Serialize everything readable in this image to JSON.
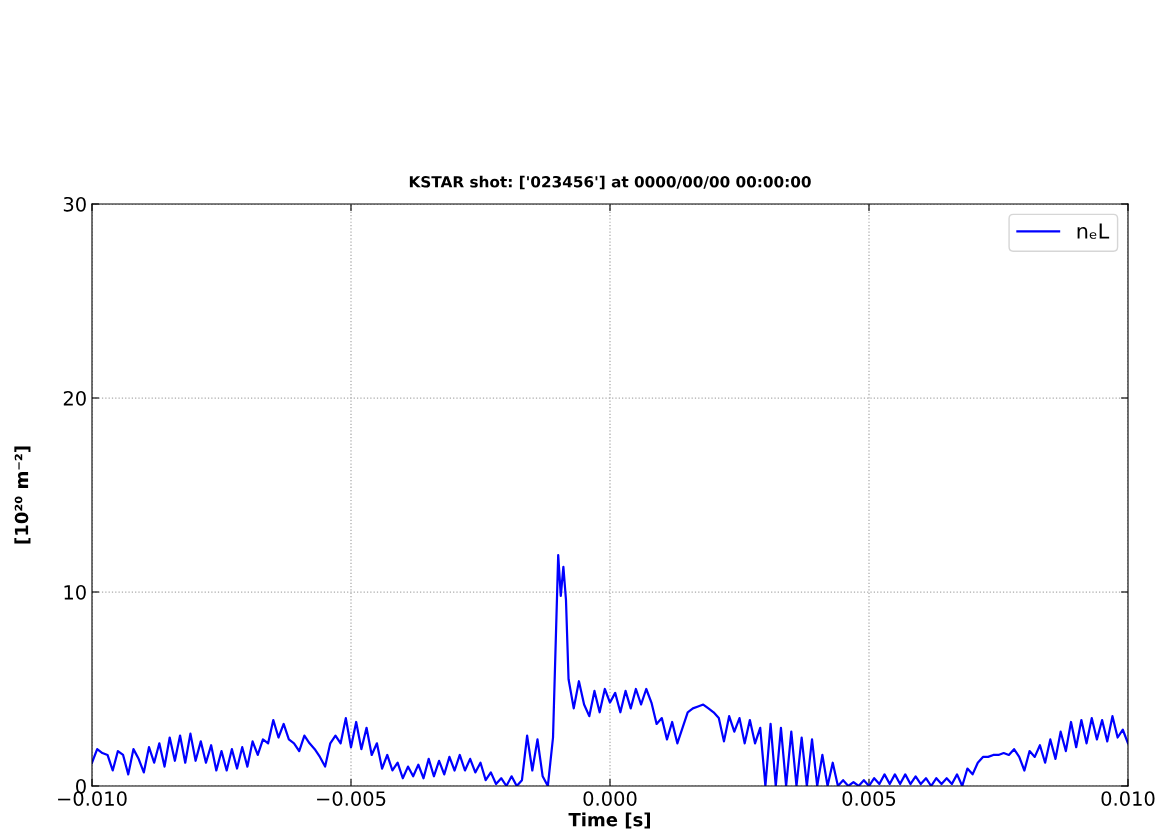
{
  "chart_data": {
    "type": "line",
    "title": "KSTAR shot: ['023456'] at 0000/00/00 00:00:00",
    "xlabel": "Time [s]",
    "ylabel": "[10²⁰ m⁻²]",
    "x": [
      -0.01,
      -0.0099,
      -0.0098,
      -0.0097,
      -0.0096,
      -0.0095,
      -0.0094,
      -0.0093,
      -0.0092,
      -0.0091,
      -0.009,
      -0.0089,
      -0.0088,
      -0.0087,
      -0.0086,
      -0.0085,
      -0.0084,
      -0.0083,
      -0.0082,
      -0.0081,
      -0.008,
      -0.0079,
      -0.0078,
      -0.0077,
      -0.0076,
      -0.0075,
      -0.0074,
      -0.0073,
      -0.0072,
      -0.0071,
      -0.007,
      -0.0069,
      -0.0068,
      -0.0067,
      -0.0066,
      -0.0065,
      -0.0064,
      -0.0063,
      -0.0062,
      -0.0061,
      -0.006,
      -0.0059,
      -0.0058,
      -0.0057,
      -0.0056,
      -0.0055,
      -0.0054,
      -0.0053,
      -0.0052,
      -0.0051,
      -0.005,
      -0.0049,
      -0.0048,
      -0.0047,
      -0.0046,
      -0.0045,
      -0.0044,
      -0.0043,
      -0.0042,
      -0.0041,
      -0.004,
      -0.0039,
      -0.0038,
      -0.0037,
      -0.0036,
      -0.0035,
      -0.0034,
      -0.0033,
      -0.0032,
      -0.0031,
      -0.003,
      -0.0029,
      -0.0028,
      -0.0027,
      -0.0026,
      -0.0025,
      -0.0024,
      -0.0023,
      -0.0022,
      -0.0021,
      -0.002,
      -0.0019,
      -0.0018,
      -0.0017,
      -0.0016,
      -0.0015,
      -0.0014,
      -0.0013,
      -0.0012,
      -0.0011,
      -0.001,
      -0.00095,
      -0.0009,
      -0.00085,
      -0.0008,
      -0.0007,
      -0.0006,
      -0.0005,
      -0.0004,
      -0.0003,
      -0.0002,
      -0.0001,
      0.0,
      0.0001,
      0.0002,
      0.0003,
      0.0004,
      0.0005,
      0.0006,
      0.0007,
      0.0008,
      0.0009,
      0.001,
      0.0011,
      0.0012,
      0.0013,
      0.0014,
      0.0015,
      0.0016,
      0.0017,
      0.0018,
      0.0019,
      0.002,
      0.0021,
      0.0022,
      0.0023,
      0.0024,
      0.0025,
      0.0026,
      0.0027,
      0.0028,
      0.0029,
      0.003,
      0.0031,
      0.0032,
      0.0033,
      0.0034,
      0.0035,
      0.0036,
      0.0037,
      0.0038,
      0.0039,
      0.004,
      0.0041,
      0.0042,
      0.0043,
      0.0044,
      0.0045,
      0.0046,
      0.0047,
      0.0048,
      0.0049,
      0.005,
      0.0051,
      0.0052,
      0.0053,
      0.0054,
      0.0055,
      0.0056,
      0.0057,
      0.0058,
      0.0059,
      0.006,
      0.0061,
      0.0062,
      0.0063,
      0.0064,
      0.0065,
      0.0066,
      0.0067,
      0.0068,
      0.0069,
      0.007,
      0.0071,
      0.0072,
      0.0073,
      0.0074,
      0.0075,
      0.0076,
      0.0077,
      0.0078,
      0.0079,
      0.008,
      0.0081,
      0.0082,
      0.0083,
      0.0084,
      0.0085,
      0.0086,
      0.0087,
      0.0088,
      0.0089,
      0.009,
      0.0091,
      0.0092,
      0.0093,
      0.0094,
      0.0095,
      0.0096,
      0.0097,
      0.0098,
      0.0099,
      0.01
    ],
    "series": [
      {
        "name": "nₑL",
        "color": "#0000ff",
        "values": [
          1.2,
          1.9,
          1.7,
          1.6,
          0.8,
          1.8,
          1.6,
          0.6,
          1.9,
          1.4,
          0.7,
          2.0,
          1.2,
          2.2,
          1.0,
          2.5,
          1.3,
          2.6,
          1.2,
          2.7,
          1.3,
          2.3,
          1.2,
          2.1,
          0.8,
          1.8,
          0.8,
          1.9,
          0.9,
          2.0,
          1.0,
          2.3,
          1.6,
          2.4,
          2.2,
          3.4,
          2.5,
          3.2,
          2.4,
          2.2,
          1.8,
          2.6,
          2.2,
          1.9,
          1.5,
          1.0,
          2.2,
          2.6,
          2.2,
          3.5,
          2.0,
          3.3,
          1.9,
          3.0,
          1.6,
          2.2,
          0.9,
          1.6,
          0.8,
          1.2,
          0.4,
          1.0,
          0.5,
          1.1,
          0.4,
          1.4,
          0.5,
          1.3,
          0.6,
          1.5,
          0.8,
          1.6,
          0.8,
          1.4,
          0.7,
          1.2,
          0.3,
          0.7,
          0.1,
          0.4,
          0.0,
          0.5,
          0.0,
          0.3,
          2.6,
          0.8,
          2.4,
          0.5,
          0.0,
          2.5,
          11.9,
          9.8,
          11.3,
          9.6,
          5.5,
          4.0,
          5.4,
          4.2,
          3.6,
          4.9,
          3.8,
          5.0,
          4.3,
          4.8,
          3.8,
          4.9,
          4.0,
          5.0,
          4.2,
          5.0,
          4.3,
          3.2,
          3.5,
          2.4,
          3.3,
          2.2,
          3.0,
          3.8,
          4.0,
          4.1,
          4.2,
          4.0,
          3.8,
          3.5,
          2.3,
          3.6,
          2.8,
          3.5,
          2.2,
          3.4,
          2.2,
          3.0,
          0.0,
          3.2,
          0.0,
          3.0,
          0.0,
          2.8,
          0.0,
          2.5,
          0.0,
          2.4,
          0.0,
          1.6,
          0.0,
          1.2,
          0.0,
          0.3,
          0.0,
          0.2,
          0.0,
          0.3,
          0.0,
          0.4,
          0.1,
          0.6,
          0.1,
          0.6,
          0.1,
          0.6,
          0.1,
          0.5,
          0.1,
          0.4,
          0.0,
          0.4,
          0.1,
          0.4,
          0.1,
          0.6,
          0.0,
          0.9,
          0.6,
          1.2,
          1.5,
          1.5,
          1.6,
          1.6,
          1.7,
          1.6,
          1.9,
          1.5,
          0.8,
          1.8,
          1.5,
          2.1,
          1.2,
          2.4,
          1.4,
          2.8,
          1.8,
          3.3,
          2.0,
          3.4,
          2.2,
          3.5,
          2.4,
          3.4,
          2.3,
          3.6,
          2.5,
          2.9,
          2.2
        ]
      }
    ],
    "xlim": [
      -0.01,
      0.01
    ],
    "xticks": [
      {
        "value": -0.01,
        "label": "−0.010"
      },
      {
        "value": -0.005,
        "label": "−0.005"
      },
      {
        "value": 0.0,
        "label": "0.000"
      },
      {
        "value": 0.005,
        "label": "0.005"
      },
      {
        "value": 0.01,
        "label": "0.010"
      }
    ],
    "ylim": [
      0,
      30
    ],
    "yticks": [
      0,
      10,
      20,
      30
    ],
    "grid": true,
    "legend": "top right",
    "line_style": "solid"
  }
}
